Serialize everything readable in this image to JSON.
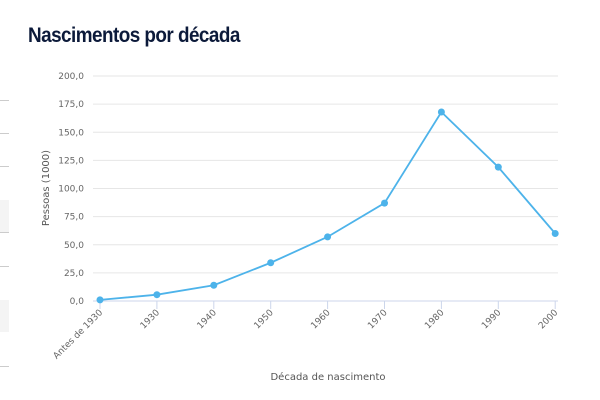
{
  "title": "Nascimentos por década",
  "chart_data": {
    "type": "line",
    "title": "Nascimentos por década",
    "xlabel": "Década de nascimento",
    "ylabel": "Pessoas (1000)",
    "categories": [
      "Antes de 1930",
      "1930",
      "1940",
      "1950",
      "1960",
      "1970",
      "1980",
      "1990",
      "2000"
    ],
    "values": [
      1,
      5.6,
      14,
      34,
      57,
      87,
      168,
      119,
      60
    ],
    "ylim": [
      0,
      200
    ],
    "yticks": [
      "0,0",
      "25,0",
      "50,0",
      "75,0",
      "100,0",
      "125,0",
      "150,0",
      "175,0",
      "200,0"
    ],
    "grid": true,
    "color": "#4db3ea"
  }
}
